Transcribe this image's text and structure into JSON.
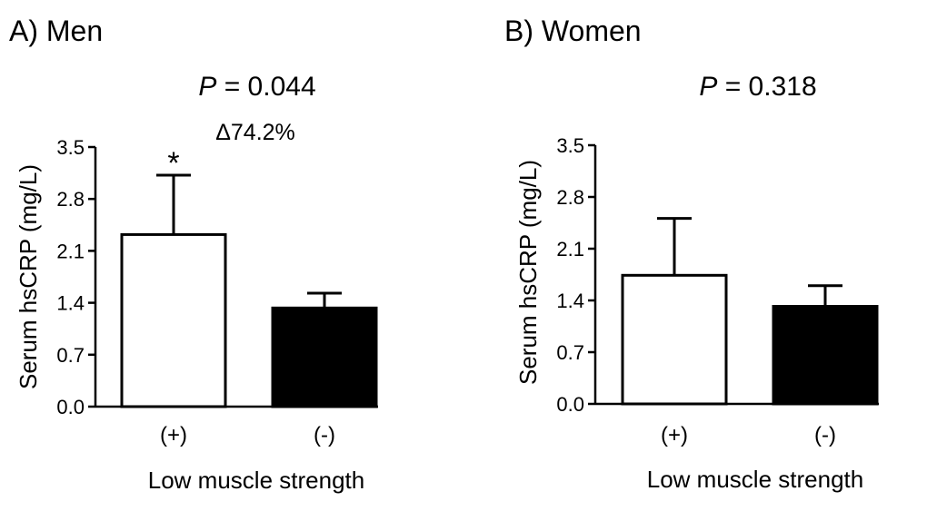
{
  "chart_data": [
    {
      "type": "bar",
      "title": "A) Men",
      "p_label": "P",
      "p_value": "= 0.044",
      "annotation": "Δ74.2%",
      "significance_marker": "*",
      "xlabel": "Low muscle strength",
      "ylabel": "Serum hsCRP (mg/L)",
      "ylim": [
        0,
        3.5
      ],
      "yticks": [
        "0.0",
        "0.7",
        "1.4",
        "2.1",
        "2.8",
        "3.5"
      ],
      "categories": [
        "(+)",
        "(-)"
      ],
      "values": [
        2.32,
        1.33
      ],
      "errors": [
        0.8,
        0.2
      ],
      "colors": [
        "#ffffff",
        "#000000"
      ],
      "marked_bar": 0
    },
    {
      "type": "bar",
      "title": "B) Women",
      "p_label": "P",
      "p_value": "= 0.318",
      "xlabel": "Low muscle strength",
      "ylabel": "Serum hsCRP (mg/L)",
      "ylim": [
        0,
        3.5
      ],
      "yticks": [
        "0.0",
        "0.7",
        "1.4",
        "2.1",
        "2.8",
        "3.5"
      ],
      "categories": [
        "(+)",
        "(-)"
      ],
      "values": [
        1.74,
        1.32
      ],
      "errors": [
        0.77,
        0.28
      ],
      "colors": [
        "#ffffff",
        "#000000"
      ]
    }
  ]
}
